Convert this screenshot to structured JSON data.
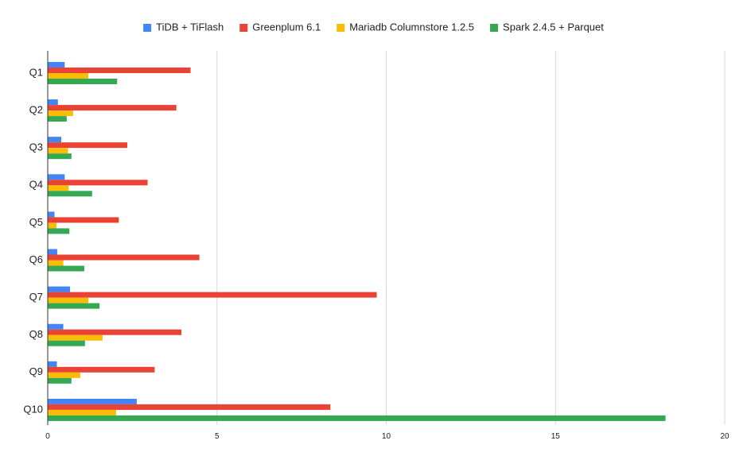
{
  "chart_data": {
    "type": "bar",
    "orientation": "horizontal",
    "title": "",
    "xlabel": "",
    "ylabel": "",
    "categories": [
      "Q1",
      "Q2",
      "Q3",
      "Q4",
      "Q5",
      "Q6",
      "Q7",
      "Q8",
      "Q9",
      "Q10"
    ],
    "series": [
      {
        "name": "TiDB + TiFlash",
        "color": "#4285f4",
        "values": [
          0.5,
          0.3,
          0.4,
          0.5,
          0.2,
          0.28,
          0.66,
          0.46,
          0.27,
          2.63
        ]
      },
      {
        "name": "Greenplum 6.1",
        "color": "#ea4335",
        "values": [
          4.22,
          3.8,
          2.35,
          2.95,
          2.1,
          4.48,
          9.72,
          3.95,
          3.16,
          8.35
        ]
      },
      {
        "name": "Mariadb Columnstore 1.2.5",
        "color": "#fbbc04",
        "values": [
          1.2,
          0.75,
          0.6,
          0.62,
          0.26,
          0.46,
          1.2,
          1.62,
          0.96,
          2.02
        ]
      },
      {
        "name": "Spark 2.4.5 + Parquet",
        "color": "#34a853",
        "values": [
          2.05,
          0.56,
          0.7,
          1.31,
          0.64,
          1.08,
          1.53,
          1.1,
          0.7,
          18.25
        ]
      }
    ],
    "xlim": [
      0,
      20
    ],
    "xticks": [
      "0",
      "5",
      "10",
      "15",
      "20"
    ],
    "grid": true,
    "legend_position": "top"
  }
}
